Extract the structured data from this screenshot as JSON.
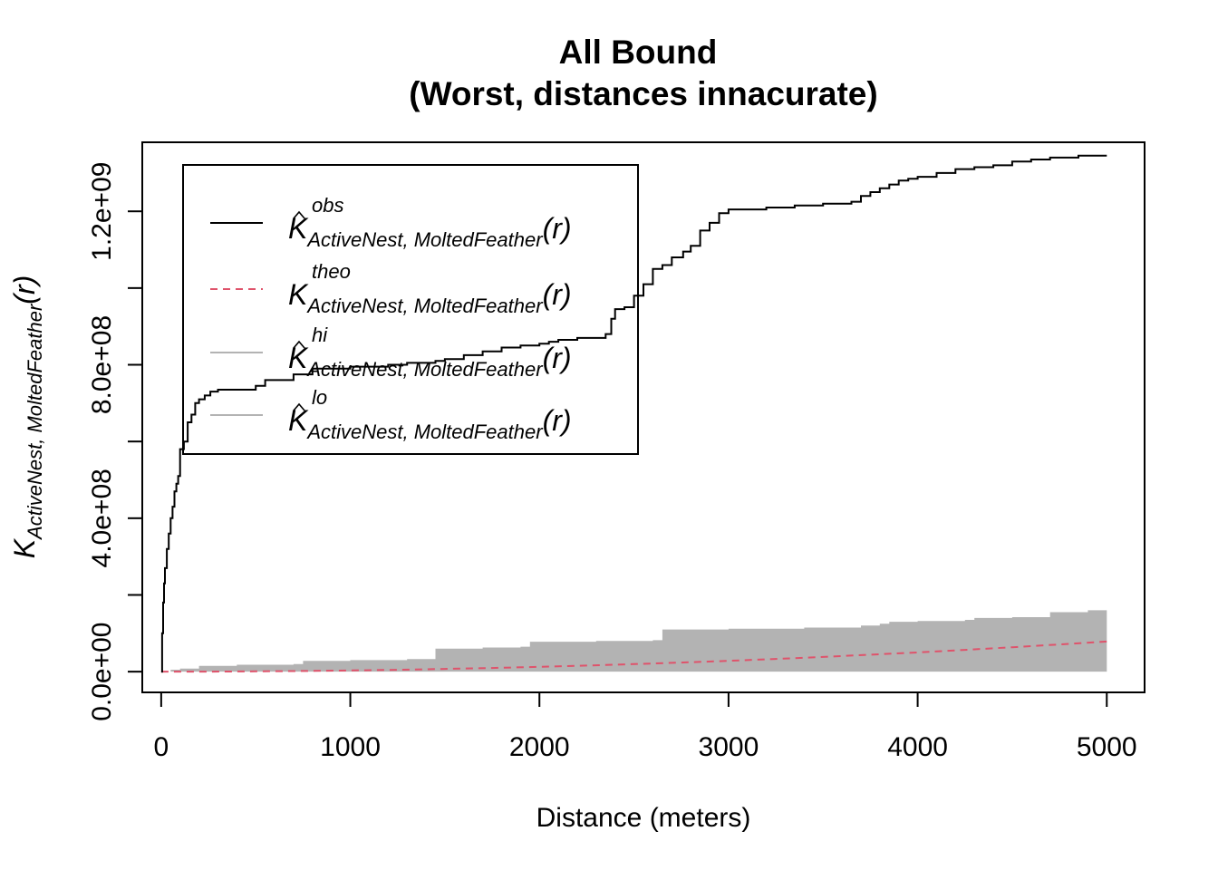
{
  "chart_data": {
    "type": "line",
    "title_line1": "All Bound",
    "title_line2": "(Worst, distances innacurate)",
    "xlabel": "Distance (meters)",
    "ylabel_main": "K",
    "ylabel_sub": "ActiveNest, MoltedFeather",
    "ylabel_arg": "(r)",
    "xlim": [
      -100,
      5200
    ],
    "ylim": [
      -54000000,
      1380000000
    ],
    "x_ticks": [
      0,
      1000,
      2000,
      3000,
      4000,
      5000
    ],
    "x_tick_labels": [
      "0",
      "1000",
      "2000",
      "3000",
      "4000",
      "5000"
    ],
    "y_ticks": [
      0,
      200000000,
      400000000,
      600000000,
      800000000,
      1000000000,
      1200000000
    ],
    "y_tick_labels": [
      "0.0e+00",
      "",
      "4.0e+08",
      "",
      "8.0e+08",
      "",
      "1.2e+09"
    ],
    "legend_position": "top-left",
    "legend": [
      {
        "key": "obs",
        "main": "K",
        "hat": true,
        "sup": "obs",
        "sub": "ActiveNest, MoltedFeather",
        "arg": "(r)",
        "color": "#000000",
        "style": "solid"
      },
      {
        "key": "theo",
        "main": "K",
        "hat": false,
        "sup": "theo",
        "sub": "ActiveNest, MoltedFeather",
        "arg": "(r)",
        "color": "#DF536B",
        "style": "dashed"
      },
      {
        "key": "hi",
        "main": "K",
        "hat": true,
        "sup": "hi",
        "sub": "ActiveNest, MoltedFeather",
        "arg": "(r)",
        "color": "#B3B3B3",
        "style": "solid"
      },
      {
        "key": "lo",
        "main": "K",
        "hat": true,
        "sup": "lo",
        "sub": "ActiveNest, MoltedFeather",
        "arg": "(r)",
        "color": "#B3B3B3",
        "style": "solid"
      }
    ],
    "series": [
      {
        "key": "obs",
        "color": "#000000",
        "x": [
          0,
          5,
          10,
          15,
          20,
          30,
          40,
          50,
          60,
          70,
          80,
          90,
          100,
          120,
          140,
          160,
          180,
          200,
          230,
          260,
          300,
          400,
          500,
          550,
          700,
          800,
          1000,
          1200,
          1300,
          1450,
          1500,
          1600,
          1700,
          1800,
          1900,
          2000,
          2050,
          2100,
          2200,
          2300,
          2350,
          2380,
          2400,
          2450,
          2500,
          2550,
          2600,
          2650,
          2700,
          2760,
          2800,
          2850,
          2900,
          2950,
          3000,
          3100,
          3200,
          3350,
          3500,
          3650,
          3700,
          3750,
          3800,
          3850,
          3900,
          3950,
          4000,
          4100,
          4200,
          4300,
          4400,
          4500,
          4600,
          4700,
          4750,
          4850,
          5000
        ],
        "y": [
          0,
          100000000,
          180000000,
          230000000,
          270000000,
          320000000,
          360000000,
          400000000,
          430000000,
          470000000,
          490000000,
          510000000,
          580000000,
          600000000,
          650000000,
          670000000,
          700000000,
          710000000,
          720000000,
          730000000,
          735000000,
          735000000,
          745000000,
          760000000,
          775000000,
          790000000,
          795000000,
          800000000,
          805000000,
          810000000,
          815000000,
          825000000,
          835000000,
          845000000,
          850000000,
          855000000,
          860000000,
          865000000,
          870000000,
          870000000,
          880000000,
          920000000,
          945000000,
          950000000,
          980000000,
          1010000000,
          1050000000,
          1060000000,
          1080000000,
          1095000000,
          1110000000,
          1150000000,
          1170000000,
          1195000000,
          1205000000,
          1205000000,
          1210000000,
          1215000000,
          1220000000,
          1225000000,
          1240000000,
          1250000000,
          1260000000,
          1270000000,
          1280000000,
          1285000000,
          1290000000,
          1300000000,
          1310000000,
          1315000000,
          1320000000,
          1330000000,
          1335000000,
          1340000000,
          1340000000,
          1345000000,
          1345000000
        ]
      },
      {
        "key": "theo",
        "color": "#DF536B",
        "x": [
          0,
          250,
          500,
          750,
          1000,
          1250,
          1500,
          1750,
          2000,
          2250,
          2500,
          2750,
          3000,
          3250,
          3500,
          3750,
          4000,
          4250,
          4500,
          4750,
          5000
        ],
        "y": [
          0,
          196000,
          785000,
          1770000,
          3140000,
          4910000,
          7070000,
          9620000,
          12570000,
          15900000,
          19630000,
          23760000,
          28270000,
          33180000,
          38480000,
          44180000,
          50270000,
          56740000,
          63620000,
          70880000,
          78540000
        ]
      },
      {
        "key": "hi",
        "color": "#B3B3B3",
        "x": [
          0,
          50,
          100,
          200,
          400,
          700,
          750,
          1000,
          1300,
          1450,
          1700,
          1900,
          1950,
          2300,
          2600,
          2650,
          3000,
          3400,
          3500,
          3700,
          3800,
          3850,
          4000,
          4250,
          4300,
          4500,
          4700,
          4900,
          5000
        ],
        "y": [
          0,
          5000000,
          8000000,
          15000000,
          18000000,
          20000000,
          28000000,
          30000000,
          33000000,
          60000000,
          63000000,
          65000000,
          78000000,
          80000000,
          82000000,
          110000000,
          112000000,
          115000000,
          115000000,
          120000000,
          125000000,
          130000000,
          132000000,
          135000000,
          140000000,
          142000000,
          155000000,
          160000000,
          175000000
        ]
      },
      {
        "key": "lo",
        "color": "#B3B3B3",
        "x": [
          0,
          5000
        ],
        "y": [
          0,
          0
        ]
      }
    ]
  }
}
